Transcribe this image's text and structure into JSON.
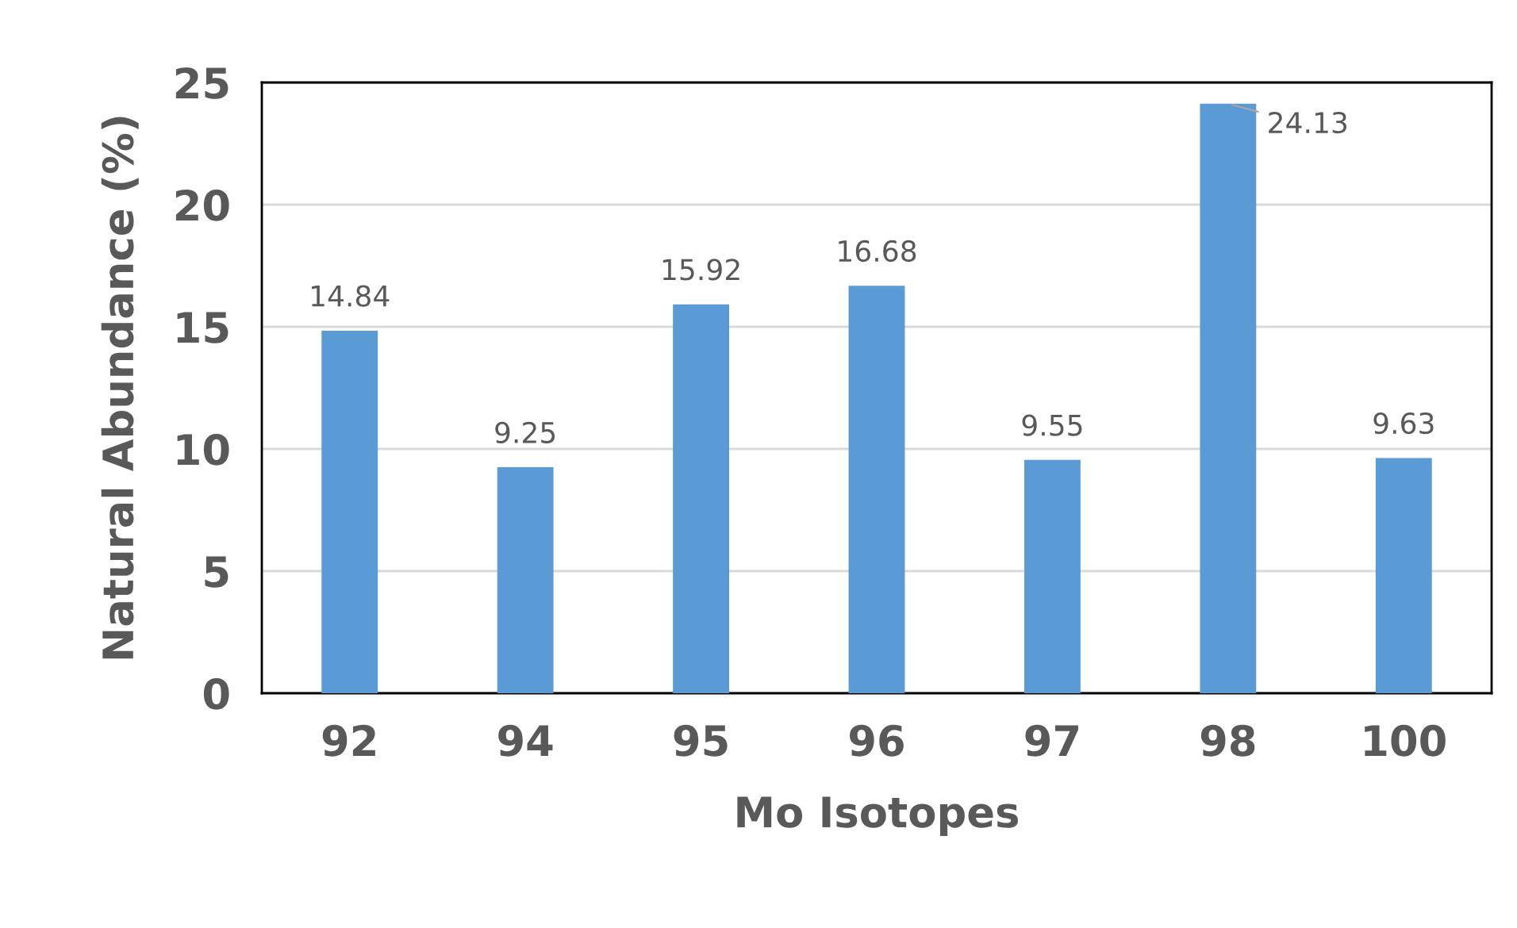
{
  "chart_data": {
    "type": "bar",
    "xlabel": "Mo Isotopes",
    "ylabel": "Natural Abundance (%)",
    "categories": [
      "92",
      "94",
      "95",
      "96",
      "97",
      "98",
      "100"
    ],
    "values": [
      14.84,
      9.25,
      15.92,
      16.68,
      9.55,
      24.13,
      9.63
    ],
    "color": "#5b9bd5",
    "ylim": [
      0,
      25
    ],
    "yticks": [
      0,
      5,
      10,
      15,
      20,
      25
    ],
    "grid": "y",
    "data_labels": true
  }
}
